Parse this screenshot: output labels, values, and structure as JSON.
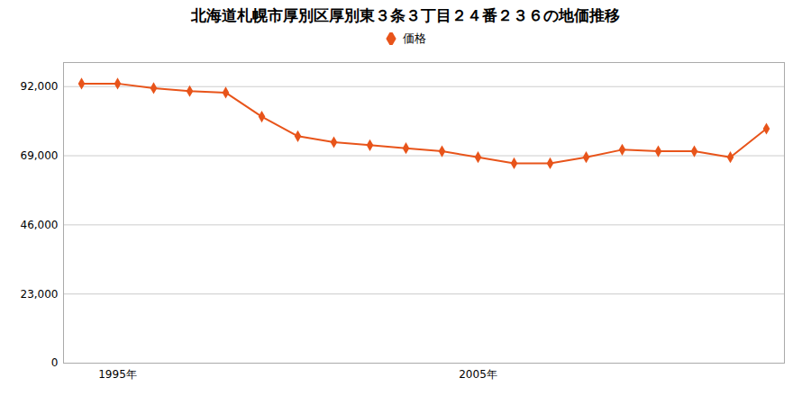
{
  "chart_data": {
    "type": "line",
    "title": "北海道札幌市厚別区厚別東３条３丁目２４番２３６の地価推移",
    "x": [
      1994,
      1995,
      1996,
      1997,
      1998,
      1999,
      2000,
      2001,
      2002,
      2003,
      2004,
      2005,
      2006,
      2007,
      2008,
      2009,
      2010,
      2011,
      2012,
      2013
    ],
    "series": [
      {
        "name": "価格",
        "color": "#e8541a",
        "marker": "diamond",
        "values": [
          93000,
          93000,
          91500,
          90500,
          90000,
          82000,
          75500,
          73500,
          72500,
          71500,
          70500,
          68500,
          66500,
          66500,
          68500,
          71000,
          70500,
          70500,
          68500,
          78000
        ]
      }
    ],
    "xlim": [
      1993.5,
      2013.5
    ],
    "xticks": [
      {
        "value": 1995,
        "label": "1995年"
      },
      {
        "value": 2005,
        "label": "2005年"
      }
    ],
    "ylim": [
      0,
      100000
    ],
    "yticks": [
      0,
      {
        "value": 23000,
        "label": "23,000"
      },
      {
        "value": 46000,
        "label": "46,000"
      },
      {
        "value": 69000,
        "label": "69,000"
      },
      {
        "value": 92000,
        "label": "92,000"
      }
    ],
    "grid": true,
    "legend": "top"
  }
}
